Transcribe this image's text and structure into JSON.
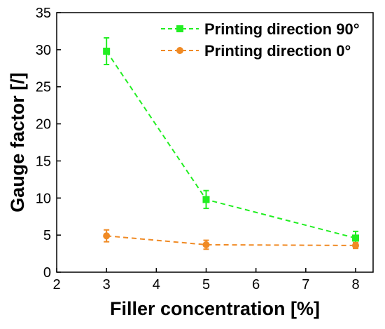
{
  "chart_data": {
    "type": "line",
    "xlabel": "Filler concentration [%]",
    "ylabel": "Gauge factor [/]",
    "xlim": [
      2,
      8
    ],
    "ylim": [
      0,
      35
    ],
    "x_ticks": [
      "2",
      "3",
      "4",
      "5",
      "6",
      "7",
      "8"
    ],
    "y_ticks": [
      "0",
      "5",
      "10",
      "15",
      "20",
      "25",
      "30",
      "35"
    ],
    "x_tick_values": [
      2,
      3,
      4,
      5,
      6,
      7,
      8
    ],
    "y_tick_values": [
      0,
      5,
      10,
      15,
      20,
      25,
      30,
      35
    ],
    "grid": false,
    "legend_position": "top-right",
    "series": [
      {
        "name": "Printing direction 90°",
        "color": "#22ee22",
        "marker": "square",
        "line_style": "dashed",
        "x": [
          3,
          5,
          8
        ],
        "y": [
          29.8,
          9.8,
          4.6
        ],
        "yerr": [
          1.8,
          1.2,
          0.9
        ]
      },
      {
        "name": "Printing direction 0°",
        "color": "#f08a24",
        "marker": "circle",
        "line_style": "dashed",
        "x": [
          3,
          5,
          8
        ],
        "y": [
          4.9,
          3.7,
          3.6
        ],
        "yerr": [
          0.8,
          0.6,
          0.4
        ]
      }
    ]
  }
}
